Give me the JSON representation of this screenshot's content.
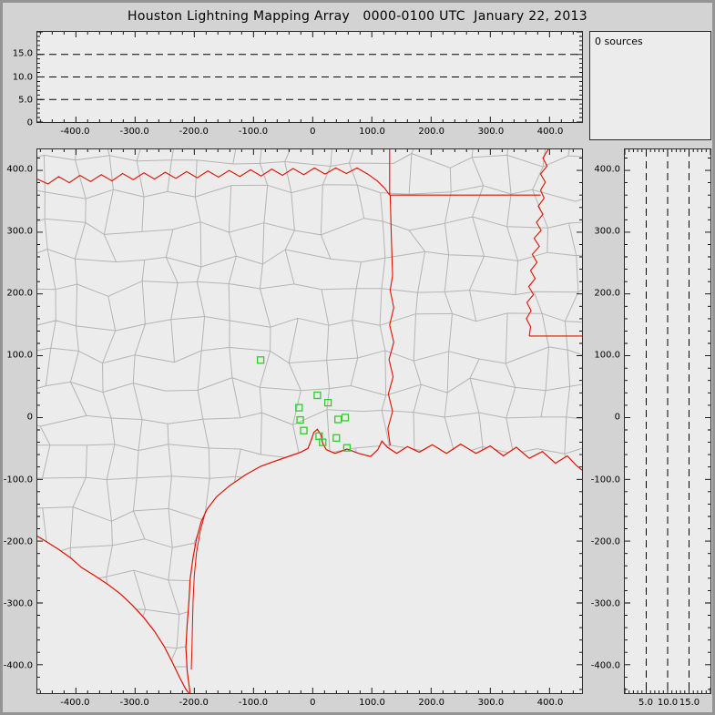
{
  "window": {
    "title": "Houston Lightning Mapping Array   0000-0100 UTC  January 22, 2013"
  },
  "sources_panel": {
    "label": "0 sources"
  },
  "colors": {
    "frame_bg": "#d3d3d3",
    "panel_bg": "#ececec",
    "panel_border": "#2b2b2b",
    "county_line": "#b4b4b4",
    "state_line": "#dd1100",
    "station_marker": "#2ecc2e",
    "dashed_gridline": "#000000",
    "text": "#000000"
  },
  "chart_data": [
    {
      "type": "scatter",
      "name": "altitude-vs-eastwest",
      "title": "",
      "xlabel": "",
      "ylabel": "",
      "xlim": [
        -465,
        455
      ],
      "ylim": [
        0,
        20
      ],
      "x_tick_values": [
        -400,
        -300,
        -200,
        -100,
        0,
        100,
        200,
        300,
        400
      ],
      "x_tick_labels": [
        "-400.0",
        "-300.0",
        "-200.0",
        "-100.0",
        "0",
        "100.0",
        "200.0",
        "300.0",
        "400.0"
      ],
      "y_tick_values": [
        15,
        10,
        5,
        0
      ],
      "y_tick_labels": [
        "15.0",
        "10.0",
        "5.0",
        "0"
      ],
      "dashed_gridlines": [
        5,
        10,
        15
      ],
      "grid": "dashed-horizontal",
      "points": [],
      "point_count": 0
    },
    {
      "type": "scatter-map",
      "name": "plan-view",
      "title": "",
      "xlabel": "",
      "ylabel": "",
      "xlim": [
        -465,
        455
      ],
      "ylim": [
        -446,
        434
      ],
      "x_tick_values": [
        -400,
        -300,
        -200,
        -100,
        0,
        100,
        200,
        300,
        400
      ],
      "x_tick_labels": [
        "-400.0",
        "-300.0",
        "-200.0",
        "-100.0",
        "0",
        "100.0",
        "200.0",
        "300.0",
        "400.0"
      ],
      "y_tick_values": [
        400,
        300,
        200,
        100,
        0,
        -100,
        -200,
        -300,
        -400
      ],
      "y_tick_labels": [
        "400.0",
        "300.0",
        "200.0",
        "100.0",
        "0",
        "-100.0",
        "-200.0",
        "-300.0",
        "-400.0"
      ],
      "stations_km": [
        [
          -88,
          93
        ],
        [
          8,
          36
        ],
        [
          -23,
          16
        ],
        [
          26,
          24
        ],
        [
          -21,
          -4
        ],
        [
          -15,
          -21
        ],
        [
          43,
          -3
        ],
        [
          55,
          0
        ],
        [
          11,
          -30
        ],
        [
          17,
          -40
        ],
        [
          40,
          -33
        ],
        [
          58,
          -49
        ]
      ],
      "points": [],
      "point_count": 0
    },
    {
      "type": "scatter",
      "name": "altitude-vs-northsouth",
      "title": "",
      "xlabel": "",
      "ylabel": "",
      "xlim": [
        0,
        20
      ],
      "ylim": [
        -446,
        434
      ],
      "x_tick_values": [
        5,
        10,
        15
      ],
      "x_tick_labels": [
        "5.0",
        "10.0",
        "15.0"
      ],
      "y_tick_values": [
        400,
        300,
        200,
        100,
        0,
        -100,
        -200,
        -300,
        -400
      ],
      "y_tick_labels": [
        "400.0",
        "300.0",
        "200.0",
        "100.0",
        "0",
        "-100.0",
        "-200.0",
        "-300.0",
        "-400.0"
      ],
      "dashed_gridlines": [
        5,
        10,
        15
      ],
      "grid": "dashed-vertical",
      "points": [],
      "point_count": 0
    }
  ]
}
